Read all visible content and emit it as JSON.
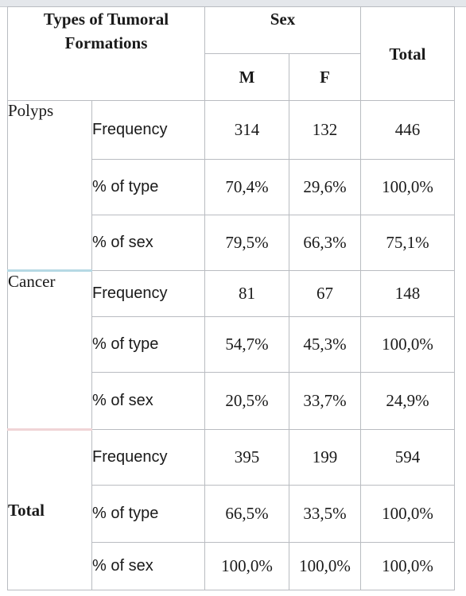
{
  "header": {
    "types_label": "Types of Tumoral Formations",
    "sex_label": "Sex",
    "m_label": "M",
    "f_label": "F",
    "total_label": "Total"
  },
  "groups": [
    {
      "name": "Polyps",
      "rows": [
        {
          "measure": "Frequency",
          "m": "314",
          "f": "132",
          "total": "446"
        },
        {
          "measure": "% of type",
          "m": "70,4%",
          "f": "29,6%",
          "total": "100,0%"
        },
        {
          "measure": "% of sex",
          "m": "79,5%",
          "f": "66,3%",
          "total": "75,1%"
        }
      ]
    },
    {
      "name": "Cancer",
      "rows": [
        {
          "measure": "Frequency",
          "m": "81",
          "f": "67",
          "total": "148"
        },
        {
          "measure": "% of type",
          "m": "54,7%",
          "f": "45,3%",
          "total": "100,0%"
        },
        {
          "measure": "% of sex",
          "m": "20,5%",
          "f": "33,7%",
          "total": "24,9%"
        }
      ]
    },
    {
      "name": "Total",
      "rows": [
        {
          "measure": "Frequency",
          "m": "395",
          "f": "199",
          "total": "594"
        },
        {
          "measure": "% of type",
          "m": "66,5%",
          "f": "33,5%",
          "total": "100,0%"
        },
        {
          "measure": "% of sex",
          "m": "100,0%",
          "f": "100,0%",
          "total": "100,0%"
        }
      ]
    }
  ]
}
